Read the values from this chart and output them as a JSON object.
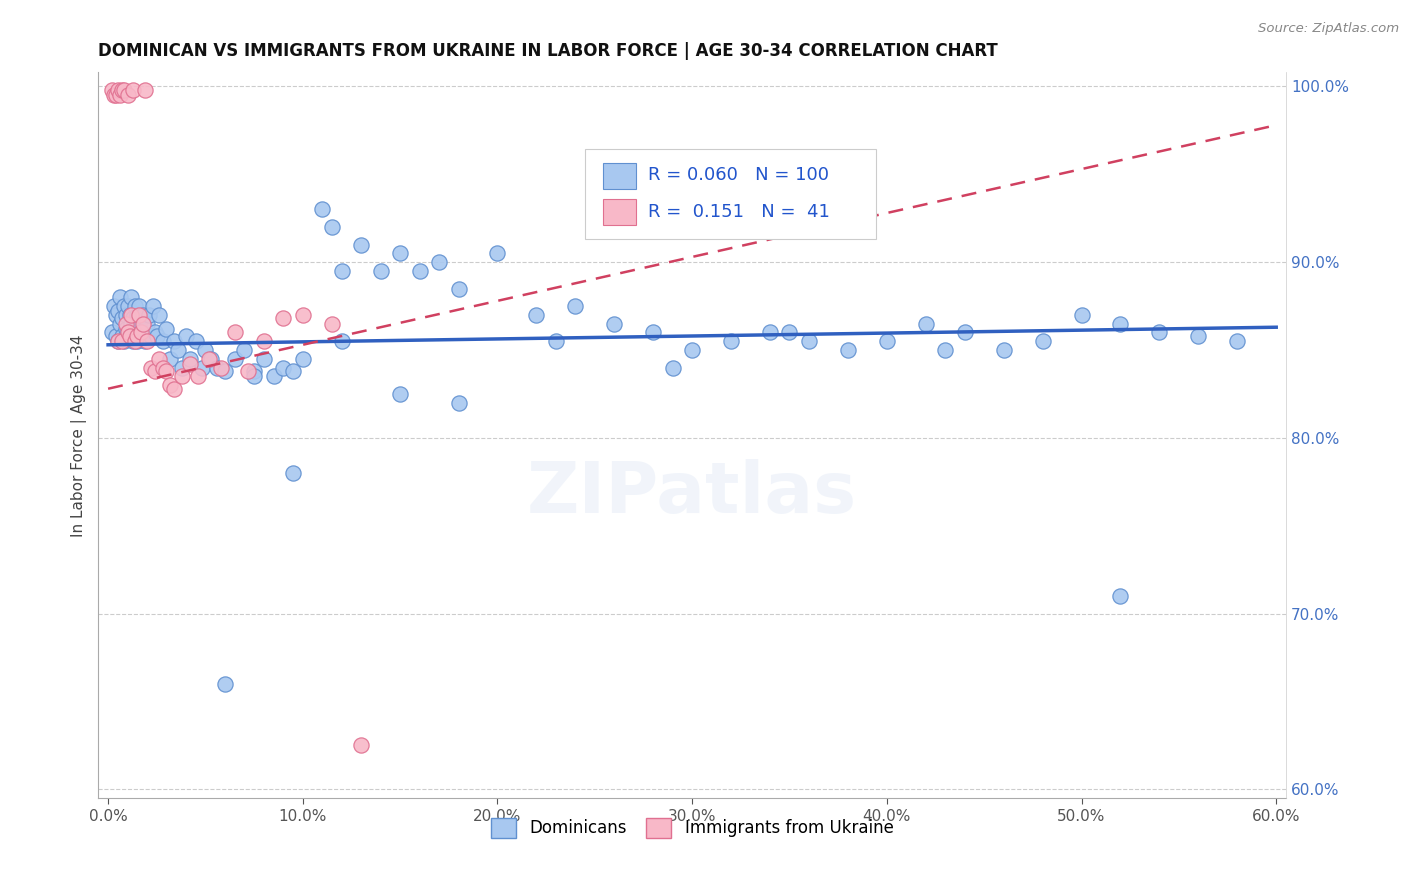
{
  "title": "DOMINICAN VS IMMIGRANTS FROM UKRAINE IN LABOR FORCE | AGE 30-34 CORRELATION CHART",
  "source": "Source: ZipAtlas.com",
  "ylabel": "In Labor Force | Age 30-34",
  "xlim": [
    -0.005,
    0.605
  ],
  "ylim": [
    0.595,
    1.008
  ],
  "xticks": [
    0.0,
    0.1,
    0.2,
    0.3,
    0.4,
    0.5,
    0.6
  ],
  "xticklabels": [
    "0.0%",
    "10.0%",
    "20.0%",
    "30.0%",
    "40.0%",
    "50.0%",
    "60.0%"
  ],
  "yticks_right": [
    0.6,
    0.7,
    0.8,
    0.9,
    1.0
  ],
  "yticklabels_right": [
    "60.0%",
    "70.0%",
    "80.0%",
    "90.0%",
    "100.0%"
  ],
  "blue_color": "#a8c8f0",
  "blue_edge_color": "#6090d0",
  "pink_color": "#f8b8c8",
  "pink_edge_color": "#e07090",
  "trend_blue": "#3060c0",
  "trend_pink": "#d04060",
  "R_blue": 0.06,
  "N_blue": 100,
  "R_pink": 0.151,
  "N_pink": 41,
  "blue_x": [
    0.002,
    0.003,
    0.004,
    0.004,
    0.005,
    0.005,
    0.006,
    0.006,
    0.007,
    0.007,
    0.008,
    0.008,
    0.009,
    0.009,
    0.01,
    0.01,
    0.011,
    0.011,
    0.012,
    0.012,
    0.013,
    0.013,
    0.014,
    0.014,
    0.015,
    0.015,
    0.016,
    0.016,
    0.017,
    0.018,
    0.019,
    0.02,
    0.021,
    0.022,
    0.023,
    0.024,
    0.025,
    0.026,
    0.028,
    0.03,
    0.032,
    0.034,
    0.036,
    0.038,
    0.04,
    0.042,
    0.045,
    0.048,
    0.05,
    0.053,
    0.056,
    0.06,
    0.065,
    0.07,
    0.075,
    0.08,
    0.085,
    0.09,
    0.095,
    0.1,
    0.11,
    0.115,
    0.12,
    0.13,
    0.14,
    0.15,
    0.16,
    0.17,
    0.18,
    0.2,
    0.22,
    0.24,
    0.26,
    0.28,
    0.3,
    0.32,
    0.34,
    0.36,
    0.38,
    0.4,
    0.42,
    0.44,
    0.46,
    0.48,
    0.5,
    0.52,
    0.54,
    0.56,
    0.58,
    0.52,
    0.43,
    0.35,
    0.29,
    0.23,
    0.18,
    0.15,
    0.12,
    0.095,
    0.075,
    0.06
  ],
  "blue_y": [
    0.86,
    0.875,
    0.858,
    0.87,
    0.855,
    0.872,
    0.865,
    0.88,
    0.858,
    0.868,
    0.875,
    0.855,
    0.862,
    0.87,
    0.86,
    0.875,
    0.858,
    0.87,
    0.865,
    0.88,
    0.855,
    0.868,
    0.875,
    0.858,
    0.87,
    0.855,
    0.865,
    0.875,
    0.86,
    0.87,
    0.855,
    0.865,
    0.87,
    0.858,
    0.875,
    0.86,
    0.858,
    0.87,
    0.855,
    0.862,
    0.845,
    0.855,
    0.85,
    0.84,
    0.858,
    0.845,
    0.855,
    0.84,
    0.85,
    0.845,
    0.84,
    0.838,
    0.845,
    0.85,
    0.838,
    0.845,
    0.835,
    0.84,
    0.838,
    0.845,
    0.93,
    0.92,
    0.895,
    0.91,
    0.895,
    0.905,
    0.895,
    0.9,
    0.885,
    0.905,
    0.87,
    0.875,
    0.865,
    0.86,
    0.85,
    0.855,
    0.86,
    0.855,
    0.85,
    0.855,
    0.865,
    0.86,
    0.85,
    0.855,
    0.87,
    0.865,
    0.86,
    0.858,
    0.855,
    0.71,
    0.85,
    0.86,
    0.84,
    0.855,
    0.82,
    0.825,
    0.855,
    0.78,
    0.835,
    0.66
  ],
  "pink_x": [
    0.002,
    0.003,
    0.004,
    0.005,
    0.005,
    0.006,
    0.007,
    0.007,
    0.008,
    0.009,
    0.01,
    0.01,
    0.011,
    0.012,
    0.013,
    0.014,
    0.015,
    0.016,
    0.017,
    0.018,
    0.019,
    0.02,
    0.022,
    0.024,
    0.026,
    0.028,
    0.03,
    0.032,
    0.034,
    0.038,
    0.042,
    0.046,
    0.052,
    0.058,
    0.065,
    0.072,
    0.08,
    0.09,
    0.1,
    0.115,
    0.13
  ],
  "pink_y": [
    0.998,
    0.995,
    0.995,
    0.998,
    0.855,
    0.995,
    0.998,
    0.855,
    0.998,
    0.865,
    0.995,
    0.86,
    0.858,
    0.87,
    0.998,
    0.855,
    0.858,
    0.87,
    0.86,
    0.865,
    0.998,
    0.855,
    0.84,
    0.838,
    0.845,
    0.84,
    0.838,
    0.83,
    0.828,
    0.835,
    0.842,
    0.835,
    0.845,
    0.84,
    0.86,
    0.838,
    0.855,
    0.868,
    0.87,
    0.865,
    0.625
  ],
  "blue_trend_x0": 0.0,
  "blue_trend_x1": 0.6,
  "blue_trend_y0": 0.853,
  "blue_trend_y1": 0.863,
  "pink_trend_x0": 0.0,
  "pink_trend_x1": 0.6,
  "pink_trend_y0": 0.828,
  "pink_trend_y1": 0.978
}
